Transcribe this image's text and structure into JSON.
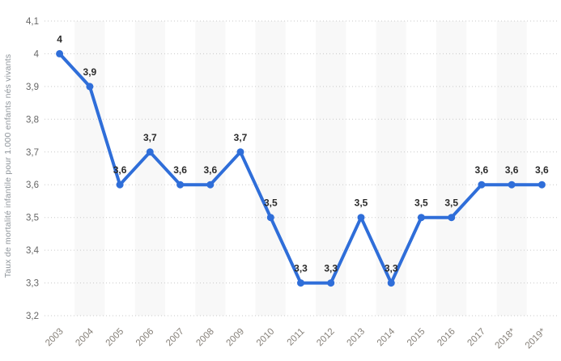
{
  "chart_data": {
    "type": "line",
    "title": "",
    "xlabel": "",
    "ylabel": "Taux de mortalité infantile pour 1.000 enfants nés vivants",
    "categories": [
      "2003",
      "2004",
      "2005",
      "2006",
      "2007",
      "2008",
      "2009",
      "2010",
      "2011",
      "2012",
      "2013",
      "2014",
      "2015",
      "2016",
      "2017",
      "2018*",
      "2019*"
    ],
    "values": [
      4,
      3.9,
      3.6,
      3.7,
      3.6,
      3.6,
      3.7,
      3.5,
      3.3,
      3.3,
      3.5,
      3.3,
      3.5,
      3.5,
      3.6,
      3.6,
      3.6
    ],
    "point_labels": [
      "4",
      "3,9",
      "3,6",
      "3,7",
      "3,6",
      "3,6",
      "3,7",
      "3,5",
      "3,3",
      "3,3",
      "3,5",
      "3,3",
      "3,5",
      "3,5",
      "3,6",
      "3,6",
      "3,6"
    ],
    "y_tick_values": [
      4.1,
      4.0,
      3.9,
      3.8,
      3.7,
      3.6,
      3.5,
      3.4,
      3.3,
      3.2
    ],
    "y_tick_labels": [
      "4,1",
      "4",
      "3,9",
      "3,8",
      "3,7",
      "3,6",
      "3,5",
      "3,4",
      "3,3",
      "3,2"
    ],
    "ylim": [
      3.2,
      4.1
    ],
    "grid": "horizontal-dotted",
    "legend": "none",
    "colors": {
      "line": "#2f6ed9",
      "marker": "#2f6ed9",
      "grid": "#c9c9c9",
      "band": "#f8f8f8",
      "data_label": "#2b2b2b",
      "y_tick_label": "#666666",
      "x_tick_label": "#868079",
      "axis_title": "#8f959b",
      "background": "#ffffff"
    }
  }
}
